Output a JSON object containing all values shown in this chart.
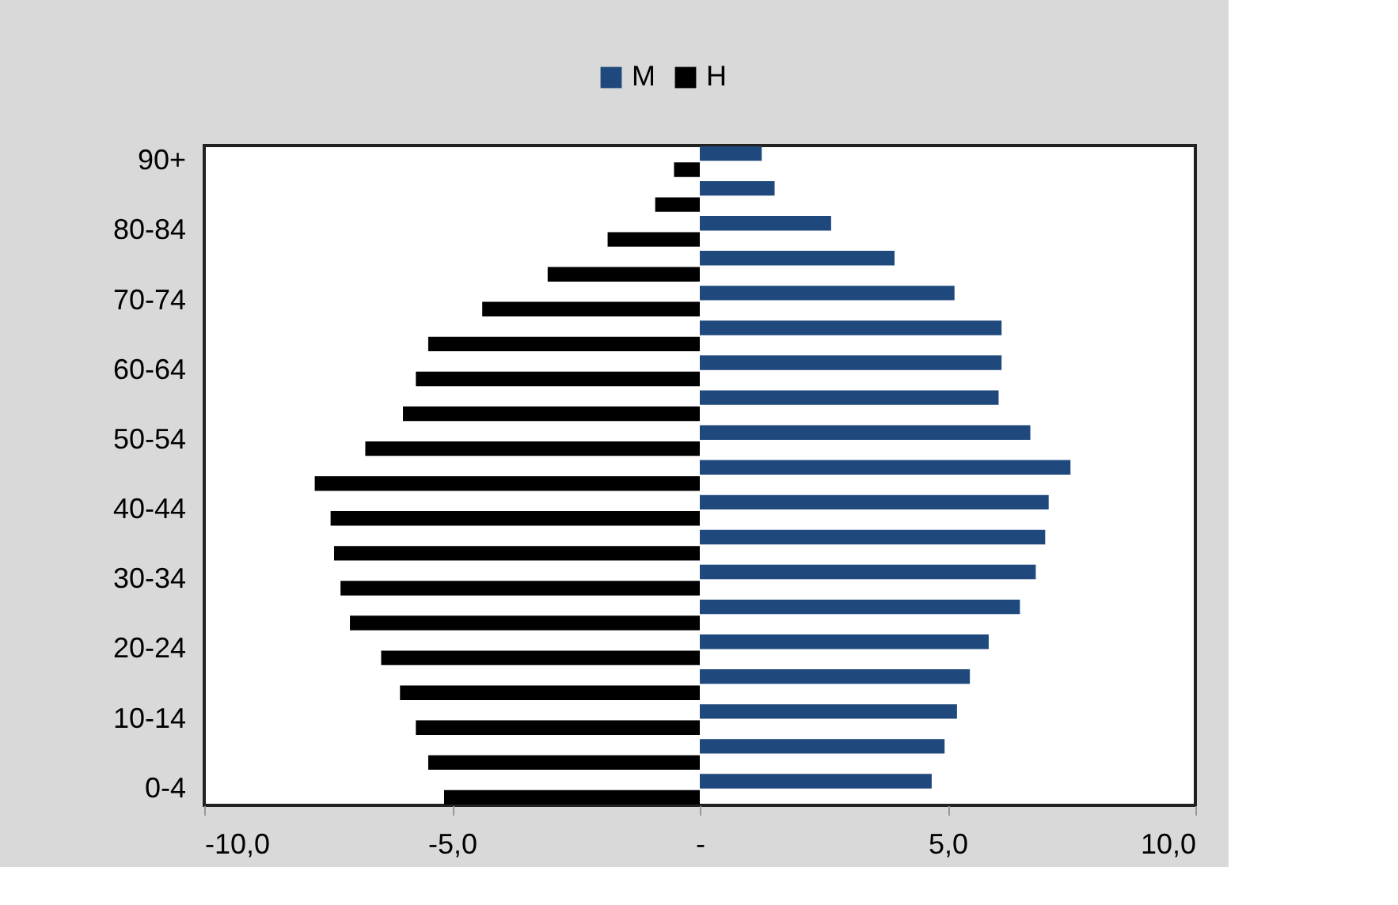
{
  "chart_data": {
    "type": "bar",
    "orientation": "horizontal",
    "legend": "top",
    "categories": [
      "90+",
      null,
      "80-84",
      null,
      "70-74",
      null,
      "60-64",
      null,
      "50-54",
      null,
      "40-44",
      null,
      "30-34",
      null,
      "20-24",
      null,
      "10-14",
      null,
      "0-4"
    ],
    "series": [
      {
        "name": "M",
        "color": "#1f497d",
        "values": [
          1.25,
          1.51,
          2.65,
          3.93,
          5.14,
          6.09,
          6.09,
          6.03,
          6.67,
          7.48,
          7.04,
          6.97,
          6.78,
          6.46,
          5.83,
          5.45,
          5.19,
          4.94,
          4.68
        ]
      },
      {
        "name": "H",
        "color": "#000000",
        "values": [
          -0.52,
          -0.9,
          -1.86,
          -3.07,
          -4.39,
          -5.48,
          -5.73,
          -5.99,
          -6.75,
          -7.77,
          -7.45,
          -7.38,
          -7.25,
          -7.06,
          -6.43,
          -6.05,
          -5.73,
          -5.48,
          -5.16
        ]
      }
    ],
    "xlim": [
      -10,
      10
    ],
    "xticks": [
      {
        "value": -10,
        "label": "-10,0"
      },
      {
        "value": -5,
        "label": "-5,0"
      },
      {
        "value": 0,
        "label": "-"
      },
      {
        "value": 5,
        "label": "5,0"
      },
      {
        "value": 10,
        "label": "10,0"
      }
    ]
  }
}
